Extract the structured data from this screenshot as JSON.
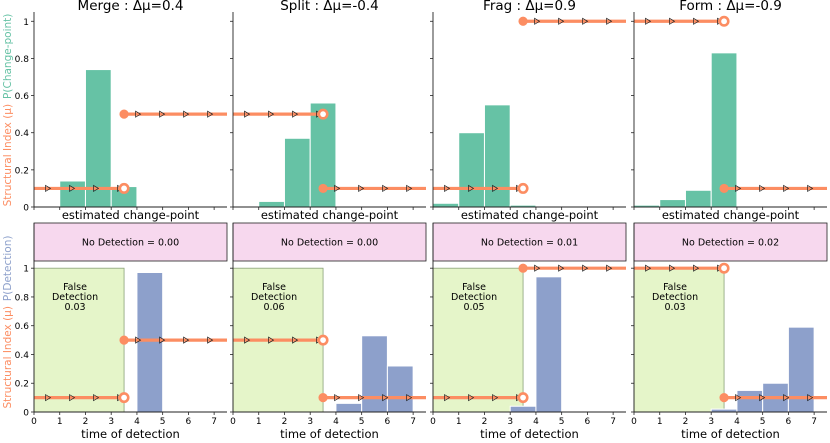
{
  "figure": {
    "colors": {
      "bar_top": "#66c2a5",
      "bar_bottom": "#8da0cb",
      "line": "#fc8d62",
      "false_detection_fill": "#e5f5c9",
      "no_detection_fill": "#f7d8ee",
      "axis_green": "#66c2a5",
      "axis_orange": "#fc8d62",
      "axis_blue": "#8da0cb"
    },
    "ylabel_top_orange": "Structural Index (μ)",
    "ylabel_top_green": "P(Change-point)",
    "ylabel_bottom_orange": "Structural Index (μ)",
    "ylabel_bottom_blue": "P(Detection)",
    "xlabel_top": "estimated change-point",
    "xlabel_bottom": "time of detection"
  },
  "chart_data": [
    {
      "type": "bar",
      "title": "Merge : Δμ=0.4",
      "row": "top",
      "xlabel": "estimated change-point",
      "ylim": [
        0,
        1.05
      ],
      "xlim": [
        0,
        7.5
      ],
      "yticks": [
        "0",
        "0.2",
        "0.4",
        "0.6",
        "0.8",
        "1"
      ],
      "bars": [
        {
          "x": 1,
          "value": 0.14
        },
        {
          "x": 2,
          "value": 0.74
        },
        {
          "x": 3,
          "value": 0.11
        }
      ],
      "structural_index": {
        "before": 0.1,
        "after": 0.5,
        "change_point": 3.5
      }
    },
    {
      "type": "bar",
      "title": "Split : Δμ=-0.4",
      "row": "top",
      "xlabel": "estimated change-point",
      "ylim": [
        0,
        1.05
      ],
      "xlim": [
        0,
        7.5
      ],
      "bars": [
        {
          "x": 1,
          "value": 0.03
        },
        {
          "x": 2,
          "value": 0.37
        },
        {
          "x": 3,
          "value": 0.56
        }
      ],
      "structural_index": {
        "before": 0.5,
        "after": 0.1,
        "change_point": 3.5
      }
    },
    {
      "type": "bar",
      "title": "Frag : Δμ=0.9",
      "row": "top",
      "xlabel": "estimated change-point",
      "ylim": [
        0,
        1.05
      ],
      "xlim": [
        0,
        7.5
      ],
      "bars": [
        {
          "x": 0,
          "value": 0.02
        },
        {
          "x": 1,
          "value": 0.4
        },
        {
          "x": 2,
          "value": 0.55
        },
        {
          "x": 3,
          "value": 0.01
        }
      ],
      "structural_index": {
        "before": 0.1,
        "after": 1.0,
        "change_point": 3.5
      }
    },
    {
      "type": "bar",
      "title": "Form : Δμ=-0.9",
      "row": "top",
      "xlabel": "estimated change-point",
      "ylim": [
        0,
        1.05
      ],
      "xlim": [
        0,
        7.5
      ],
      "bars": [
        {
          "x": 0,
          "value": 0.01
        },
        {
          "x": 1,
          "value": 0.04
        },
        {
          "x": 2,
          "value": 0.09
        },
        {
          "x": 3,
          "value": 0.83
        }
      ],
      "structural_index": {
        "before": 1.0,
        "after": 0.1,
        "change_point": 3.5
      }
    },
    {
      "type": "bar",
      "row": "bottom",
      "xlabel": "time of detection",
      "ylim": [
        0,
        1.05
      ],
      "xlim": [
        0,
        7.5
      ],
      "xticks": [
        "0",
        "1",
        "2",
        "3",
        "4",
        "5",
        "6",
        "7"
      ],
      "yticks": [
        "0",
        "0.2",
        "0.4",
        "0.6",
        "0.8",
        "1"
      ],
      "no_detection_label": "No Detection = 0.00",
      "false_detection_label": [
        "False",
        "Detection",
        "0.03"
      ],
      "bars": [
        {
          "x": 4,
          "value": 0.97
        }
      ],
      "structural_index": {
        "before": 0.1,
        "after": 0.5,
        "change_point": 3.5
      }
    },
    {
      "type": "bar",
      "row": "bottom",
      "xlabel": "time of detection",
      "ylim": [
        0,
        1.05
      ],
      "xlim": [
        0,
        7.5
      ],
      "xticks": [
        "0",
        "1",
        "2",
        "3",
        "4",
        "5",
        "6",
        "7"
      ],
      "no_detection_label": "No Detection = 0.00",
      "false_detection_label": [
        "False",
        "Detection",
        "0.06"
      ],
      "bars": [
        {
          "x": 4,
          "value": 0.06
        },
        {
          "x": 5,
          "value": 0.53
        },
        {
          "x": 6,
          "value": 0.32
        }
      ],
      "structural_index": {
        "before": 0.5,
        "after": 0.1,
        "change_point": 3.5
      }
    },
    {
      "type": "bar",
      "row": "bottom",
      "xlabel": "time of detection",
      "ylim": [
        0,
        1.05
      ],
      "xlim": [
        0,
        7.5
      ],
      "xticks": [
        "0",
        "1",
        "2",
        "3",
        "4",
        "5",
        "6",
        "7"
      ],
      "no_detection_label": "No Detection = 0.01",
      "false_detection_label": [
        "False",
        "Detection",
        "0.05"
      ],
      "bars": [
        {
          "x": 3,
          "value": 0.04
        },
        {
          "x": 4,
          "value": 0.94
        }
      ],
      "structural_index": {
        "before": 0.1,
        "after": 1.0,
        "change_point": 3.5
      }
    },
    {
      "type": "bar",
      "row": "bottom",
      "xlabel": "time of detection",
      "ylim": [
        0,
        1.05
      ],
      "xlim": [
        0,
        7.5
      ],
      "xticks": [
        "0",
        "1",
        "2",
        "3",
        "4",
        "5",
        "6",
        "7"
      ],
      "no_detection_label": "No Detection = 0.02",
      "false_detection_label": [
        "False",
        "Detection",
        "0.03"
      ],
      "bars": [
        {
          "x": 3,
          "value": 0.02
        },
        {
          "x": 4,
          "value": 0.15
        },
        {
          "x": 5,
          "value": 0.2
        },
        {
          "x": 6,
          "value": 0.59
        }
      ],
      "structural_index": {
        "before": 1.0,
        "after": 0.1,
        "change_point": 3.5
      }
    }
  ]
}
